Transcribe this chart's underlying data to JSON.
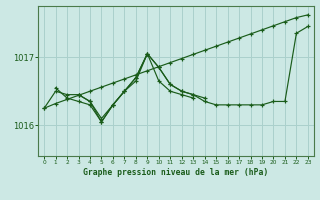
{
  "bg_color": "#cce8e4",
  "grid_color": "#aad0cc",
  "line_color": "#1a5c1a",
  "title": "Graphe pression niveau de la mer (hPa)",
  "title_color": "#1a5c1a",
  "ylabel_ticks": [
    1016,
    1017
  ],
  "xlim": [
    -0.5,
    23.5
  ],
  "ylim": [
    1015.55,
    1017.75
  ],
  "xticks": [
    0,
    1,
    2,
    3,
    4,
    5,
    6,
    7,
    8,
    9,
    10,
    11,
    12,
    13,
    14,
    15,
    16,
    17,
    18,
    19,
    20,
    21,
    22,
    23
  ],
  "series": [
    {
      "x": [
        0,
        1,
        2,
        3,
        4,
        5,
        6,
        7,
        8,
        9,
        10,
        11,
        12,
        13,
        14,
        15,
        16,
        17,
        18,
        19,
        20,
        21,
        22,
        23
      ],
      "y": [
        1016.25,
        1016.32,
        1016.38,
        1016.44,
        1016.5,
        1016.56,
        1016.62,
        1016.68,
        1016.74,
        1016.8,
        1016.86,
        1016.92,
        1016.98,
        1017.04,
        1017.1,
        1017.16,
        1017.22,
        1017.28,
        1017.34,
        1017.4,
        1017.46,
        1017.52,
        1017.58,
        1017.62
      ]
    },
    {
      "x": [
        0,
        1,
        2,
        3,
        4,
        5,
        6,
        7,
        8,
        9,
        10,
        11,
        12,
        13,
        14,
        15,
        16,
        17,
        18,
        19,
        20,
        21,
        22,
        23
      ],
      "y": [
        1016.25,
        1016.5,
        1016.45,
        1016.45,
        1016.35,
        1016.1,
        1016.3,
        1016.5,
        1016.65,
        1017.05,
        1016.85,
        1016.6,
        1016.5,
        1016.45,
        1016.35,
        1016.3,
        1016.3,
        1016.3,
        1016.3,
        1016.3,
        1016.35,
        1016.35,
        1017.35,
        1017.45
      ]
    },
    {
      "x": [
        1,
        2,
        3,
        4,
        5,
        6,
        7,
        8,
        9,
        10,
        11,
        12,
        13,
        14
      ],
      "y": [
        1016.55,
        1016.4,
        1016.35,
        1016.3,
        1016.05,
        1016.3,
        1016.5,
        1016.7,
        1017.05,
        1016.85,
        1016.6,
        1016.5,
        1016.45,
        1016.4
      ]
    },
    {
      "x": [
        3,
        4,
        5,
        6,
        7,
        8,
        9,
        10,
        11,
        12,
        13
      ],
      "y": [
        1016.45,
        1016.35,
        1016.05,
        1016.3,
        1016.5,
        1016.7,
        1017.05,
        1016.65,
        1016.5,
        1016.45,
        1016.4
      ]
    }
  ]
}
